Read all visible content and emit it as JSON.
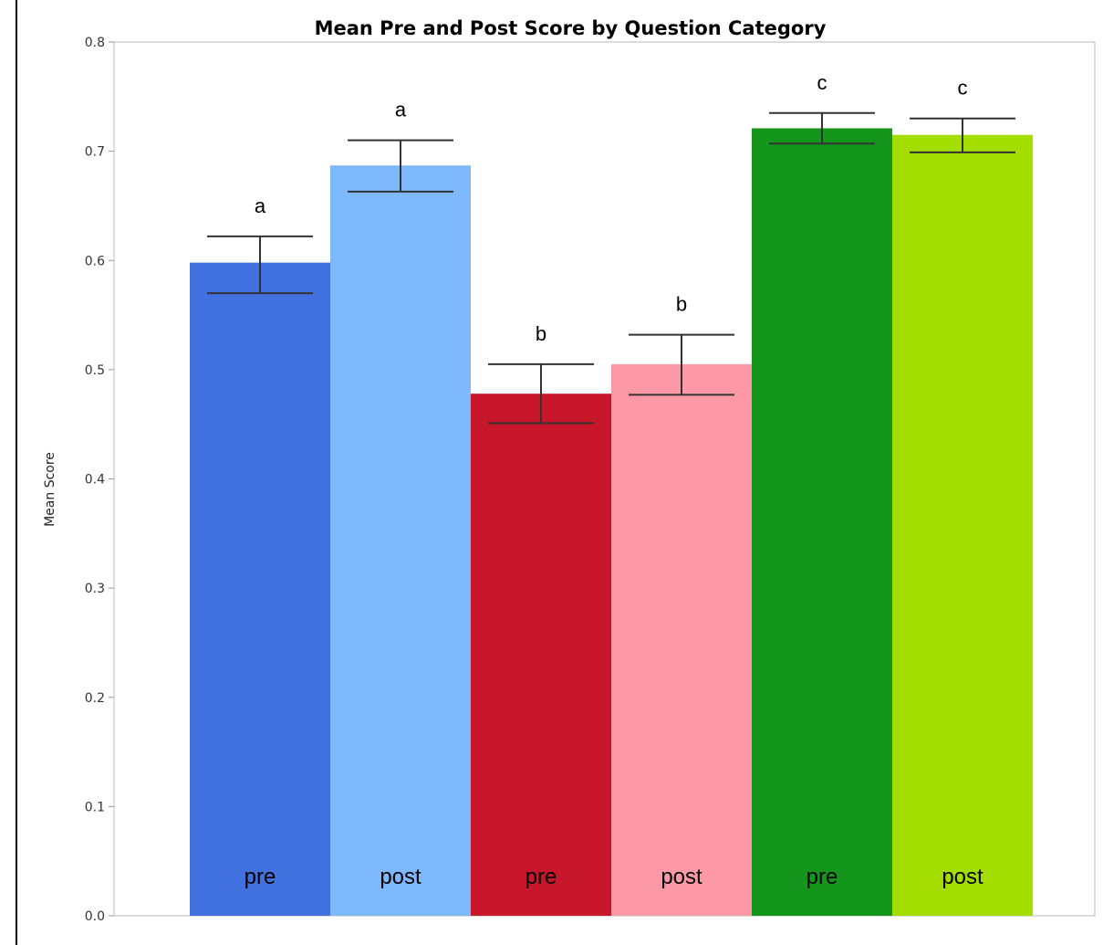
{
  "chart_data": {
    "type": "bar",
    "title": "Mean Pre and Post Score by Question Category",
    "ylabel": "Mean Score",
    "xlabel": "",
    "ylim": [
      0.0,
      0.8
    ],
    "yticks": [
      "0.0",
      "0.1",
      "0.2",
      "0.3",
      "0.4",
      "0.5",
      "0.6",
      "0.7",
      "0.8"
    ],
    "grid": false,
    "bars": [
      {
        "label": "pre",
        "value": 0.598,
        "err_low": 0.57,
        "err_high": 0.622,
        "letter": "a",
        "color": "#4171de"
      },
      {
        "label": "post",
        "value": 0.687,
        "err_low": 0.663,
        "err_high": 0.71,
        "letter": "a",
        "color": "#7eb8fd"
      },
      {
        "label": "pre",
        "value": 0.478,
        "err_low": 0.451,
        "err_high": 0.505,
        "letter": "b",
        "color": "#c8162a"
      },
      {
        "label": "post",
        "value": 0.505,
        "err_low": 0.477,
        "err_high": 0.532,
        "letter": "b",
        "color": "#fd98a6"
      },
      {
        "label": "pre",
        "value": 0.721,
        "err_low": 0.707,
        "err_high": 0.735,
        "letter": "c",
        "color": "#13961b"
      },
      {
        "label": "post",
        "value": 0.715,
        "err_low": 0.699,
        "err_high": 0.73,
        "letter": "c",
        "color": "#a4dd00"
      }
    ]
  }
}
